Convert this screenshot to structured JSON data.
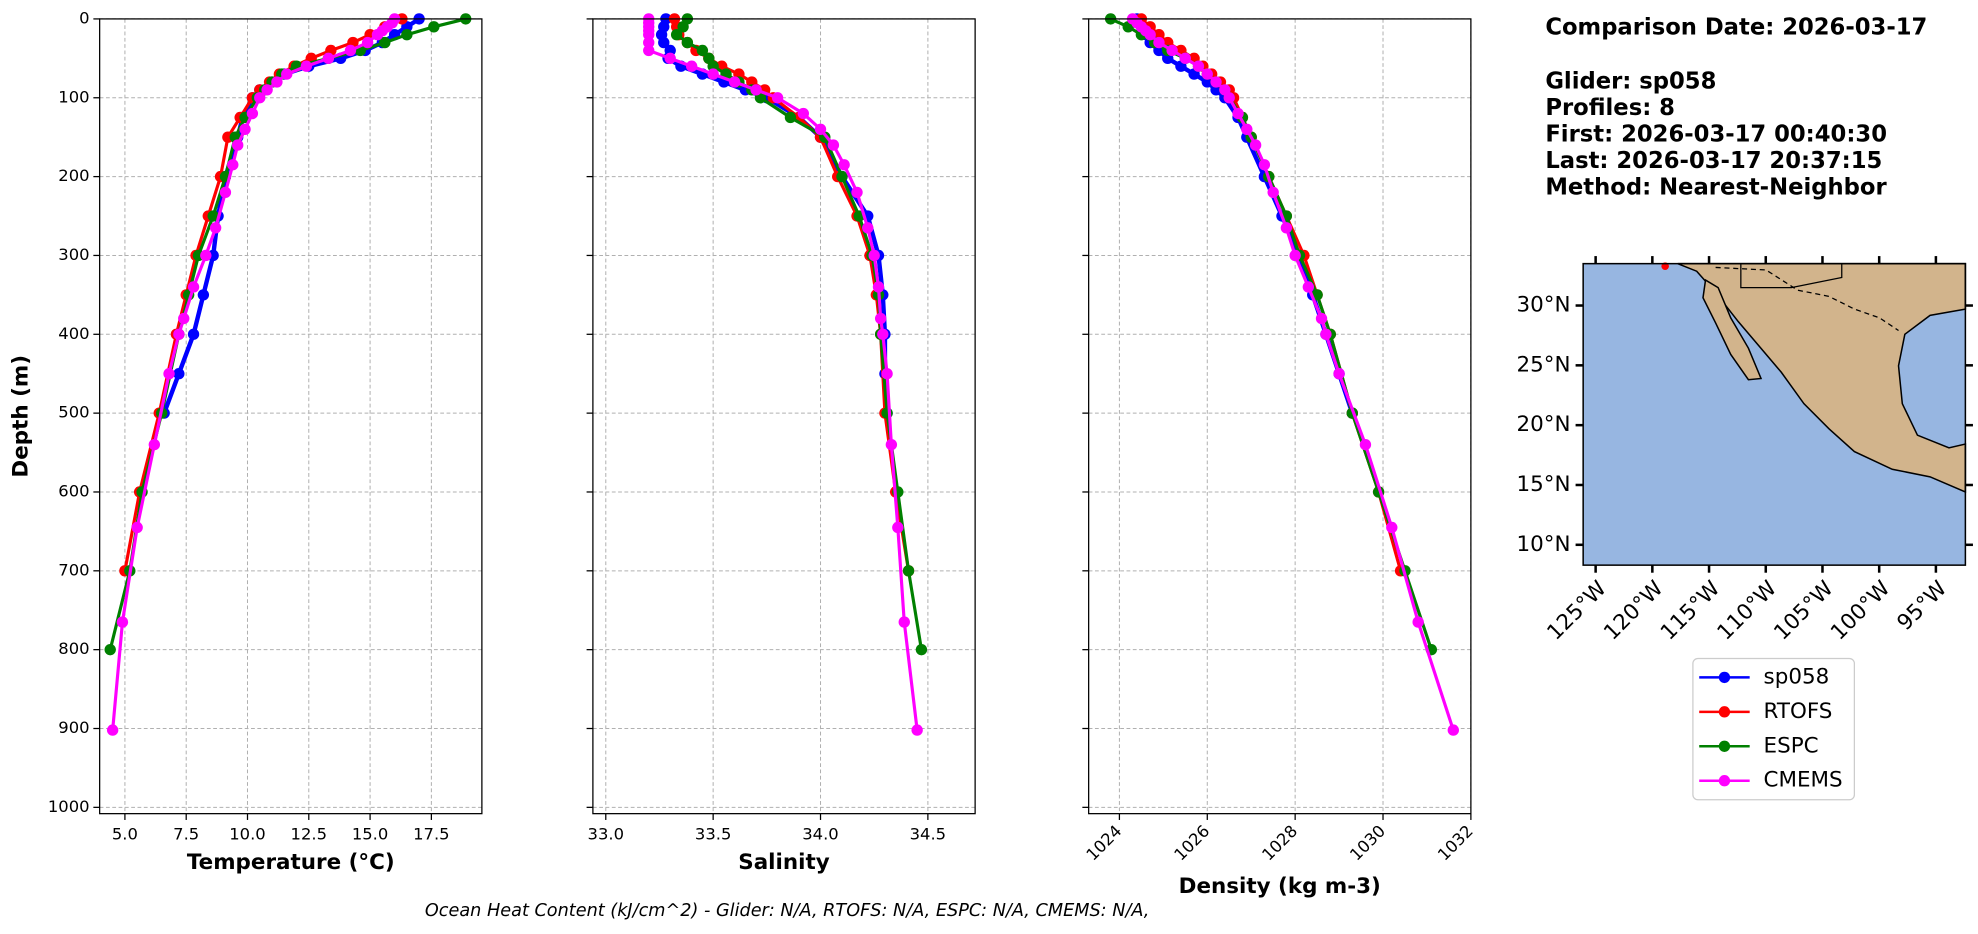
{
  "chart_data": [
    {
      "type": "line",
      "xlabel": "Temperature (°C)",
      "ylabel": "Depth (m)",
      "xlim": [
        3.97,
        19.56
      ],
      "ylim": [
        0,
        1008
      ],
      "invert_y": true,
      "grid": true,
      "xticks": [
        {
          "value": 5,
          "label": "5.0"
        },
        {
          "value": 7.5,
          "label": "7.5"
        },
        {
          "value": 10,
          "label": "10.0"
        },
        {
          "value": 12.5,
          "label": "12.5"
        },
        {
          "value": 15,
          "label": "15.0"
        },
        {
          "value": 17.5,
          "label": "17.5"
        }
      ],
      "yticks": [
        0,
        100,
        200,
        300,
        400,
        500,
        600,
        700,
        800,
        900,
        1000
      ],
      "series": [
        {
          "name": "sp058",
          "color": "#0000ff",
          "y": [
            0,
            10,
            20,
            30,
            40,
            50,
            60,
            70,
            80,
            90,
            100,
            125,
            150,
            200,
            250,
            300,
            350,
            400,
            450,
            500
          ],
          "values": [
            17.0,
            16.5,
            16.0,
            15.5,
            14.8,
            13.8,
            12.5,
            11.5,
            11.0,
            10.5,
            10.2,
            9.8,
            9.6,
            9.1,
            8.8,
            8.6,
            8.2,
            7.8,
            7.2,
            6.6
          ]
        },
        {
          "name": "RTOFS",
          "color": "#ff0000",
          "y": [
            0,
            10,
            20,
            30,
            40,
            50,
            60,
            70,
            80,
            90,
            100,
            125,
            150,
            200,
            250,
            300,
            350,
            400,
            500,
            600,
            700
          ],
          "values": [
            16.3,
            15.6,
            15.0,
            14.3,
            13.4,
            12.6,
            11.9,
            11.3,
            10.9,
            10.5,
            10.2,
            9.7,
            9.2,
            8.9,
            8.4,
            7.9,
            7.5,
            7.1,
            6.4,
            5.6,
            5.0
          ]
        },
        {
          "name": "ESPC",
          "color": "#008000",
          "y": [
            0,
            10,
            20,
            30,
            40,
            50,
            60,
            70,
            80,
            90,
            100,
            125,
            150,
            200,
            250,
            300,
            350,
            400,
            500,
            600,
            700,
            800
          ],
          "values": [
            18.9,
            17.6,
            16.5,
            15.6,
            14.6,
            13.3,
            12.0,
            11.4,
            11.0,
            10.7,
            10.4,
            9.9,
            9.5,
            9.1,
            8.6,
            8.0,
            7.6,
            7.2,
            6.5,
            5.7,
            5.2,
            4.4
          ]
        },
        {
          "name": "CMEMS",
          "color": "#ff00ff",
          "y": [
            0,
            5,
            10,
            15,
            20,
            30,
            40,
            50,
            60,
            70,
            80,
            90,
            100,
            120,
            140,
            160,
            185,
            220,
            265,
            300,
            340,
            380,
            400,
            450,
            540,
            645,
            765,
            902
          ],
          "values": [
            16.0,
            15.9,
            15.7,
            15.5,
            15.3,
            14.9,
            14.2,
            13.3,
            12.4,
            11.6,
            11.2,
            10.8,
            10.5,
            10.2,
            9.9,
            9.6,
            9.4,
            9.1,
            8.7,
            8.3,
            7.8,
            7.4,
            7.2,
            6.8,
            6.2,
            5.5,
            4.9,
            4.5
          ]
        }
      ]
    },
    {
      "type": "line",
      "xlabel": "Salinity",
      "xlim": [
        32.94,
        34.72
      ],
      "ylim": [
        0,
        1008
      ],
      "invert_y": true,
      "grid": true,
      "xticks": [
        {
          "value": 33,
          "label": "33.0"
        },
        {
          "value": 33.5,
          "label": "33.5"
        },
        {
          "value": 34,
          "label": "34.0"
        },
        {
          "value": 34.5,
          "label": "34.5"
        }
      ],
      "series": [
        {
          "name": "sp058",
          "color": "#0000ff",
          "y": [
            0,
            10,
            20,
            30,
            40,
            50,
            60,
            70,
            80,
            90,
            100,
            125,
            150,
            200,
            250,
            300,
            350,
            400,
            450,
            500
          ],
          "values": [
            33.28,
            33.27,
            33.26,
            33.27,
            33.3,
            33.29,
            33.35,
            33.45,
            33.55,
            33.65,
            33.75,
            33.9,
            34.0,
            34.1,
            34.22,
            34.27,
            34.29,
            34.3,
            34.3,
            34.31
          ]
        },
        {
          "name": "RTOFS",
          "color": "#ff0000",
          "y": [
            0,
            10,
            20,
            30,
            40,
            50,
            60,
            70,
            80,
            90,
            100,
            125,
            150,
            200,
            250,
            300,
            350,
            400,
            500,
            600,
            700
          ],
          "values": [
            33.32,
            33.33,
            33.34,
            33.38,
            33.42,
            33.48,
            33.54,
            33.62,
            33.68,
            33.74,
            33.78,
            33.9,
            34.0,
            34.08,
            34.17,
            34.23,
            34.26,
            34.28,
            34.3,
            34.35,
            34.41
          ]
        },
        {
          "name": "ESPC",
          "color": "#008000",
          "y": [
            0,
            10,
            20,
            30,
            40,
            50,
            60,
            70,
            80,
            90,
            100,
            125,
            150,
            200,
            250,
            300,
            350,
            400,
            500,
            600,
            700,
            800
          ],
          "values": [
            33.38,
            33.36,
            33.33,
            33.38,
            33.45,
            33.48,
            33.5,
            33.56,
            33.62,
            33.68,
            33.72,
            33.86,
            34.02,
            34.1,
            34.18,
            34.24,
            34.27,
            34.28,
            34.31,
            34.36,
            34.41,
            34.47
          ]
        },
        {
          "name": "CMEMS",
          "color": "#ff00ff",
          "y": [
            0,
            5,
            10,
            15,
            20,
            30,
            40,
            50,
            60,
            70,
            80,
            90,
            100,
            120,
            140,
            160,
            185,
            220,
            265,
            300,
            340,
            380,
            400,
            450,
            540,
            645,
            765,
            902
          ],
          "values": [
            33.2,
            33.2,
            33.2,
            33.2,
            33.2,
            33.2,
            33.2,
            33.3,
            33.4,
            33.5,
            33.6,
            33.7,
            33.8,
            33.92,
            34.0,
            34.06,
            34.11,
            34.17,
            34.22,
            34.25,
            34.27,
            34.28,
            34.29,
            34.31,
            34.33,
            34.36,
            34.39,
            34.45
          ]
        }
      ]
    },
    {
      "type": "line",
      "xlabel": "Density (kg m-3)",
      "xlim": [
        1023.3,
        1032
      ],
      "ylim": [
        0,
        1008
      ],
      "invert_y": true,
      "grid": true,
      "xtick_rotation": 45,
      "xticks": [
        1024,
        1026,
        1028,
        1030,
        1032
      ],
      "series": [
        {
          "name": "sp058",
          "color": "#0000ff",
          "y": [
            0,
            10,
            20,
            30,
            40,
            50,
            60,
            70,
            80,
            90,
            100,
            125,
            150,
            200,
            250,
            300,
            350,
            400,
            450,
            500
          ],
          "values": [
            1024.4,
            1024.5,
            1024.6,
            1024.7,
            1024.9,
            1025.1,
            1025.4,
            1025.7,
            1026.0,
            1026.2,
            1026.4,
            1026.7,
            1026.9,
            1027.3,
            1027.7,
            1028.1,
            1028.4,
            1028.7,
            1029.0,
            1029.3
          ]
        },
        {
          "name": "RTOFS",
          "color": "#ff0000",
          "y": [
            0,
            10,
            20,
            30,
            40,
            50,
            60,
            70,
            80,
            90,
            100,
            125,
            150,
            200,
            250,
            300,
            350,
            400,
            500,
            600,
            700
          ],
          "values": [
            1024.5,
            1024.7,
            1024.9,
            1025.1,
            1025.4,
            1025.7,
            1025.9,
            1026.1,
            1026.3,
            1026.5,
            1026.6,
            1026.8,
            1027.0,
            1027.4,
            1027.8,
            1028.2,
            1028.5,
            1028.8,
            1029.3,
            1029.9,
            1030.4
          ]
        },
        {
          "name": "ESPC",
          "color": "#008000",
          "y": [
            0,
            10,
            20,
            30,
            40,
            50,
            60,
            70,
            80,
            90,
            100,
            125,
            150,
            200,
            250,
            300,
            350,
            400,
            500,
            600,
            700,
            800
          ],
          "values": [
            1023.8,
            1024.2,
            1024.5,
            1024.8,
            1025.1,
            1025.5,
            1025.8,
            1026.0,
            1026.2,
            1026.4,
            1026.5,
            1026.8,
            1027.0,
            1027.4,
            1027.8,
            1028.1,
            1028.5,
            1028.8,
            1029.3,
            1029.9,
            1030.5,
            1031.1
          ]
        },
        {
          "name": "CMEMS",
          "color": "#ff00ff",
          "y": [
            0,
            5,
            10,
            15,
            20,
            30,
            40,
            50,
            60,
            70,
            80,
            90,
            100,
            120,
            140,
            160,
            185,
            220,
            265,
            300,
            340,
            380,
            400,
            450,
            540,
            645,
            765,
            902
          ],
          "values": [
            1024.3,
            1024.4,
            1024.5,
            1024.6,
            1024.7,
            1024.9,
            1025.2,
            1025.5,
            1025.8,
            1026.0,
            1026.2,
            1026.4,
            1026.5,
            1026.7,
            1026.9,
            1027.1,
            1027.3,
            1027.5,
            1027.8,
            1028.0,
            1028.3,
            1028.6,
            1028.7,
            1029.0,
            1029.6,
            1030.2,
            1030.8,
            1031.6
          ]
        }
      ]
    }
  ],
  "info": {
    "title": "Comparison Date: 2026-03-17",
    "lines": [
      "Glider: sp058",
      "Profiles: 8",
      "First: 2026-03-17 00:40:30",
      "Last: 2026-03-17 20:37:15",
      "Method: Nearest-Neighbor"
    ]
  },
  "map": {
    "xlim": [
      -126.1,
      -92.4
    ],
    "ylim": [
      8.3,
      33.5
    ],
    "ocean_color": "#97b6e1",
    "land_color": "#d2b48c",
    "xticks": [
      {
        "value": -125,
        "label": "125°W"
      },
      {
        "value": -120,
        "label": "120°W"
      },
      {
        "value": -115,
        "label": "115°W"
      },
      {
        "value": -110,
        "label": "110°W"
      },
      {
        "value": -105,
        "label": "105°W"
      },
      {
        "value": -100,
        "label": "100°W"
      },
      {
        "value": -95,
        "label": "95°W"
      }
    ],
    "yticks": [
      {
        "value": 10,
        "label": "10°N"
      },
      {
        "value": 15,
        "label": "15°N"
      },
      {
        "value": 20,
        "label": "20°N"
      },
      {
        "value": 25,
        "label": "25°N"
      },
      {
        "value": 30,
        "label": "30°N"
      }
    ]
  },
  "footer": "Ocean Heat Content (kJ/cm^2) - Glider: N/A,  RTOFS: N/A,  ESPC: N/A,  CMEMS: N/A,"
}
